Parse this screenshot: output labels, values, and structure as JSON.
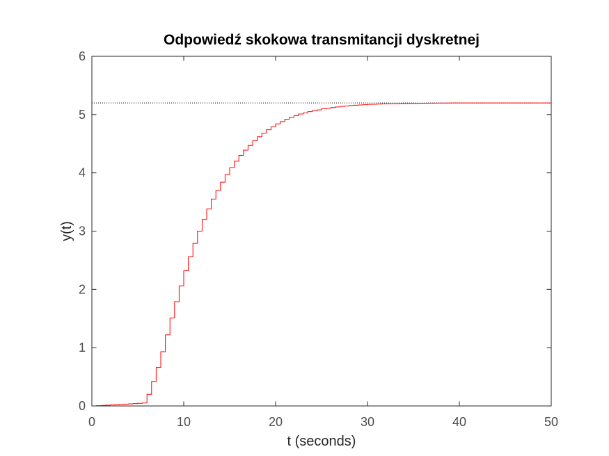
{
  "chart_data": {
    "type": "line",
    "title": "Odpowiedź skokowa transmitancji dyskretnej",
    "xlabel": "t (seconds)",
    "ylabel": "y(t)",
    "xlim": [
      0,
      50
    ],
    "ylim": [
      0,
      6
    ],
    "xticks": [
      0,
      10,
      20,
      30,
      40,
      50
    ],
    "yticks": [
      0,
      1,
      2,
      3,
      4,
      5,
      6
    ],
    "grid": false,
    "plot_style": "stairs",
    "sample_time": 0.5,
    "steady_state": 5.2,
    "series": [
      {
        "color": "#ff0000",
        "x": [
          0,
          5.5,
          6.0,
          6.5,
          7.0,
          7.5,
          8.0,
          8.5,
          9.0,
          9.5,
          10.0,
          10.5,
          11.0,
          11.5,
          12.0,
          12.5,
          13.0,
          13.5,
          14.0,
          14.5,
          15.0,
          15.5,
          16.0,
          16.5,
          17.0,
          17.5,
          18.0,
          18.5,
          19.0,
          19.5,
          20.0,
          20.5,
          21.0,
          21.5,
          22.0,
          22.5,
          23.0,
          23.5,
          24.0,
          24.5,
          25.0,
          26.0,
          27.0,
          28.0,
          29.0,
          30.0,
          32.0,
          34.0,
          36.0,
          38.0,
          40.0,
          45.0,
          50.0
        ],
        "y": [
          0,
          0.05,
          0.2,
          0.42,
          0.66,
          0.93,
          1.22,
          1.51,
          1.79,
          2.06,
          2.32,
          2.56,
          2.79,
          3.0,
          3.2,
          3.38,
          3.55,
          3.7,
          3.84,
          3.97,
          4.09,
          4.2,
          4.3,
          4.39,
          4.47,
          4.55,
          4.62,
          4.68,
          4.74,
          4.79,
          4.84,
          4.88,
          4.92,
          4.95,
          4.98,
          5.01,
          5.03,
          5.05,
          5.07,
          5.08,
          5.1,
          5.12,
          5.14,
          5.155,
          5.165,
          5.175,
          5.185,
          5.19,
          5.195,
          5.198,
          5.2,
          5.2,
          5.2
        ]
      }
    ],
    "reference_line": {
      "y": 5.2,
      "style": "dotted",
      "color": "#000000"
    }
  }
}
